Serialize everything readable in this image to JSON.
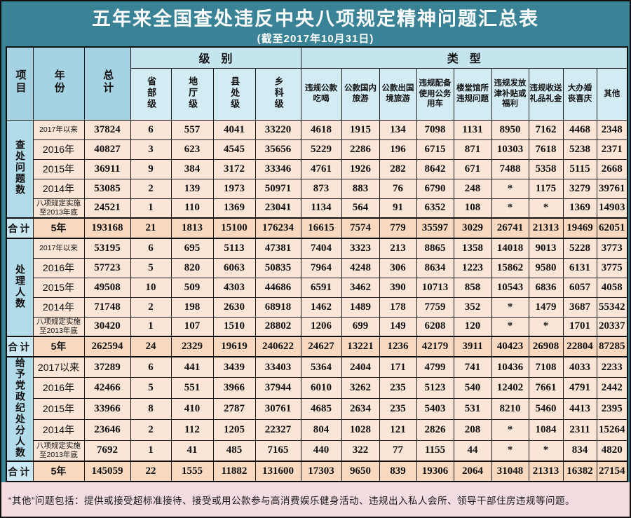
{
  "title": "五年来全国查处违反中央八项规定精神问题汇总表",
  "subtitle": "(截至2017年10月31日)",
  "footnote": "“其他”问题包括：提供或接受超标准接待、接受或用公款参与高消费娱乐健身活动、违规出入私人会所、领导干部住房违规等问题。",
  "colors": {
    "background_teal": "#3A8396",
    "corner_header_blue": "#A6D3E3",
    "group_header_blue": "#C4E4EE",
    "sub_header_blue": "#D3ECF4",
    "section_label_blue": "#B2DCEA",
    "total_label_blue": "#CBE9F3",
    "data_cell_peach": "#FBE5D6",
    "total_row_peach": "#F8D8BE",
    "footnote_pink": "#F2DCE0",
    "title_text": "#FFFFFF",
    "border": "#1B1B1B"
  },
  "chart_data": {
    "type": "table",
    "corner_headers": [
      "项目",
      "年份",
      "总计"
    ],
    "group_headers": [
      {
        "label": "级　别",
        "span": 4
      },
      {
        "label": "类　型",
        "span": 9
      }
    ],
    "level_columns": [
      "省部级",
      "地厅级",
      "县处级",
      "乡科级"
    ],
    "type_columns": [
      "违规公款吃喝",
      "公款国内旅游",
      "公款出国境旅游",
      "违规配备使用公务用车",
      "楼堂馆所违规问题",
      "违规发放津补贴或福利",
      "违规收送礼品礼金",
      "大办婚丧喜庆",
      "其他"
    ],
    "sections": [
      {
        "label": "查处问题数",
        "rows": [
          {
            "year": "2017年以来",
            "total": 37824,
            "values": [
              6,
              557,
              4041,
              33220,
              4618,
              1915,
              134,
              7098,
              1131,
              8950,
              7162,
              4468,
              2348
            ]
          },
          {
            "year": "2016年",
            "total": 40827,
            "values": [
              3,
              623,
              4545,
              35656,
              5229,
              2286,
              196,
              6715,
              871,
              10303,
              7618,
              5238,
              2371
            ]
          },
          {
            "year": "2015年",
            "total": 36911,
            "values": [
              9,
              384,
              3172,
              33346,
              4761,
              1926,
              282,
              8642,
              671,
              7488,
              5358,
              5115,
              2668
            ]
          },
          {
            "year": "2014年",
            "total": 53085,
            "values": [
              2,
              139,
              1973,
              50971,
              873,
              883,
              76,
              6790,
              248,
              "*",
              1175,
              3279,
              39761
            ]
          },
          {
            "year": "八项规定实施\n至2013年底",
            "total": 24521,
            "values": [
              1,
              110,
              1369,
              23041,
              1134,
              564,
              91,
              6352,
              108,
              "*",
              "*",
              1369,
              14903
            ]
          }
        ],
        "total_row": {
          "label": "合计",
          "year": "5年",
          "total": 193168,
          "values": [
            21,
            1813,
            15100,
            176234,
            16615,
            7574,
            779,
            35597,
            3029,
            26741,
            21313,
            19469,
            62051
          ]
        }
      },
      {
        "label": "处理人数",
        "rows": [
          {
            "year": "2017年以来",
            "total": 53195,
            "values": [
              6,
              695,
              5113,
              47381,
              7404,
              3323,
              213,
              8865,
              1358,
              14018,
              9013,
              5228,
              3773
            ]
          },
          {
            "year": "2016年",
            "total": 57723,
            "values": [
              5,
              820,
              6063,
              50835,
              7964,
              4248,
              306,
              8634,
              1223,
              15862,
              9580,
              6131,
              3775
            ]
          },
          {
            "year": "2015年",
            "total": 49508,
            "values": [
              10,
              509,
              4303,
              44686,
              6591,
              3462,
              390,
              10713,
              858,
              10543,
              6836,
              6057,
              4058
            ]
          },
          {
            "year": "2014年",
            "total": 71748,
            "values": [
              2,
              198,
              2630,
              68918,
              1462,
              1489,
              178,
              7759,
              352,
              "*",
              1479,
              3687,
              55342
            ]
          },
          {
            "year": "八项规定实施\n至2013年底",
            "total": 30420,
            "values": [
              1,
              107,
              1510,
              28802,
              1206,
              699,
              149,
              6208,
              120,
              "*",
              "*",
              1701,
              20337
            ]
          }
        ],
        "total_row": {
          "label": "合计",
          "year": "5年",
          "total": 262594,
          "values": [
            24,
            2329,
            19619,
            240622,
            24627,
            13221,
            1236,
            42179,
            3911,
            40423,
            26908,
            22804,
            87285
          ]
        }
      },
      {
        "label": "给予党政纪处分人数",
        "rows": [
          {
            "year": "2017以来",
            "total": 37289,
            "values": [
              6,
              441,
              3439,
              33403,
              5364,
              2404,
              171,
              4799,
              741,
              10436,
              7108,
              4033,
              2233
            ]
          },
          {
            "year": "2016年",
            "total": 42466,
            "values": [
              5,
              551,
              3966,
              37944,
              6010,
              3262,
              235,
              5123,
              540,
              12402,
              7661,
              4791,
              2442
            ]
          },
          {
            "year": "2015年",
            "total": 33966,
            "values": [
              8,
              410,
              2787,
              30761,
              4685,
              2634,
              235,
              5403,
              531,
              8210,
              5460,
              4413,
              2395
            ]
          },
          {
            "year": "2014年",
            "total": 23646,
            "values": [
              2,
              112,
              1205,
              22327,
              804,
              1028,
              121,
              2826,
              208,
              "*",
              1084,
              2311,
              15264
            ]
          },
          {
            "year": "八项规定实施\n至2013年底",
            "total": 7692,
            "values": [
              1,
              41,
              485,
              7165,
              440,
              322,
              77,
              1155,
              44,
              "*",
              "*",
              834,
              4820
            ]
          }
        ],
        "total_row": {
          "label": "合计",
          "year": "5年",
          "total": 145059,
          "values": [
            22,
            1555,
            11882,
            131600,
            17303,
            9650,
            839,
            19306,
            2064,
            31048,
            21313,
            16382,
            27154
          ]
        }
      }
    ]
  }
}
